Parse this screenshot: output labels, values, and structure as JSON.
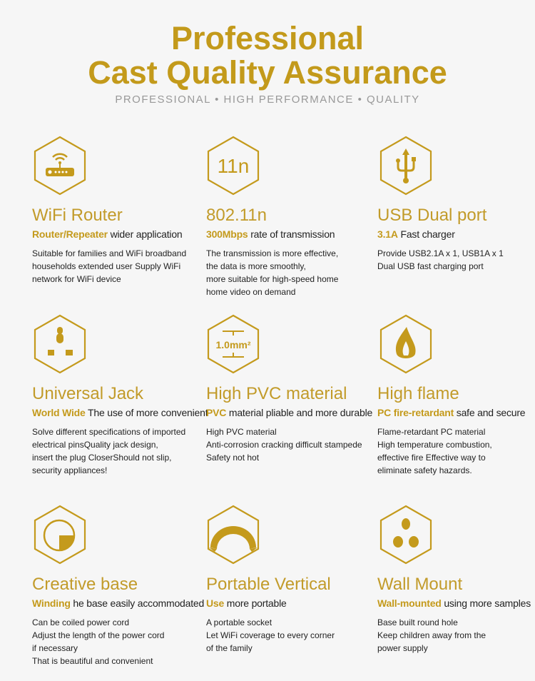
{
  "header": {
    "line1": "Professional",
    "line2": "Cast Quality Assurance",
    "subtitle": "PROFESSIONAL •  HIGH PERFORMANCE •   QUALITY"
  },
  "colors": {
    "gold": "#c49a1c",
    "background": "#f6f6f6"
  },
  "features": [
    {
      "icon": "wifi-router-icon",
      "title": "WiFi Router",
      "highlight": "Router/Repeater",
      "tagline": " wider application",
      "lines": [
        "Suitable for families and WiFi broadband",
        "households extended user Supply WiFi",
        "network for WiFi device"
      ]
    },
    {
      "icon": "11n-icon",
      "icon_text": "11n",
      "title": "802.11n",
      "highlight": "300Mbps",
      "tagline": " rate of transmission",
      "lines": [
        "The transmission is more effective,",
        "the data is more smoothly,",
        "more suitable for high-speed home",
        "home video on demand"
      ]
    },
    {
      "icon": "usb-icon",
      "title": "USB Dual port",
      "highlight": "3.1A",
      "tagline": " Fast charger",
      "lines": [
        "Provide USB2.1A x 1,  USB1A x 1",
        "Dual USB fast charging port"
      ]
    },
    {
      "icon": "universal-socket-icon",
      "title": "Universal Jack",
      "highlight": "World Wide",
      "tagline": " The use of more convenient",
      "lines": [
        "Solve different specifications of imported",
        "electrical pinsQuality jack design,",
        "insert the plug CloserShould not slip,",
        "security appliances!"
      ]
    },
    {
      "icon": "wire-gauge-icon",
      "icon_text": "1.0mm²",
      "title": "High PVC material",
      "highlight": "PVC",
      "tagline": " material pliable and more durable",
      "lines": [
        "High PVC material",
        "Anti-corrosion cracking difficult stampede",
        "Safety not hot"
      ]
    },
    {
      "icon": "flame-icon",
      "title": "High flame",
      "highlight": "PC fire-retardant",
      "tagline": " safe and secure",
      "lines": [
        "Flame-retardant PC material",
        "High temperature combustion,",
        "effective fire Effective way to",
        "eliminate safety hazards."
      ]
    },
    {
      "icon": "base-icon",
      "title": "Creative base",
      "highlight": "Winding",
      "tagline": " he base easily accommodated",
      "lines": [
        "Can be coiled power cord",
        "Adjust the length of the power cord",
        "if necessary",
        "That is beautiful and convenient"
      ]
    },
    {
      "icon": "arch-icon",
      "title": "Portable Vertical",
      "highlight": "Use",
      "tagline": " more portable",
      "lines": [
        "A portable socket",
        "Let WiFi coverage to every corner",
        "of the family"
      ]
    },
    {
      "icon": "wall-mount-icon",
      "title": "Wall Mount",
      "highlight": "Wall-mounted",
      "tagline": " using more samples",
      "lines": [
        "Base built round hole",
        "Keep children away from the",
        "power supply"
      ]
    }
  ]
}
